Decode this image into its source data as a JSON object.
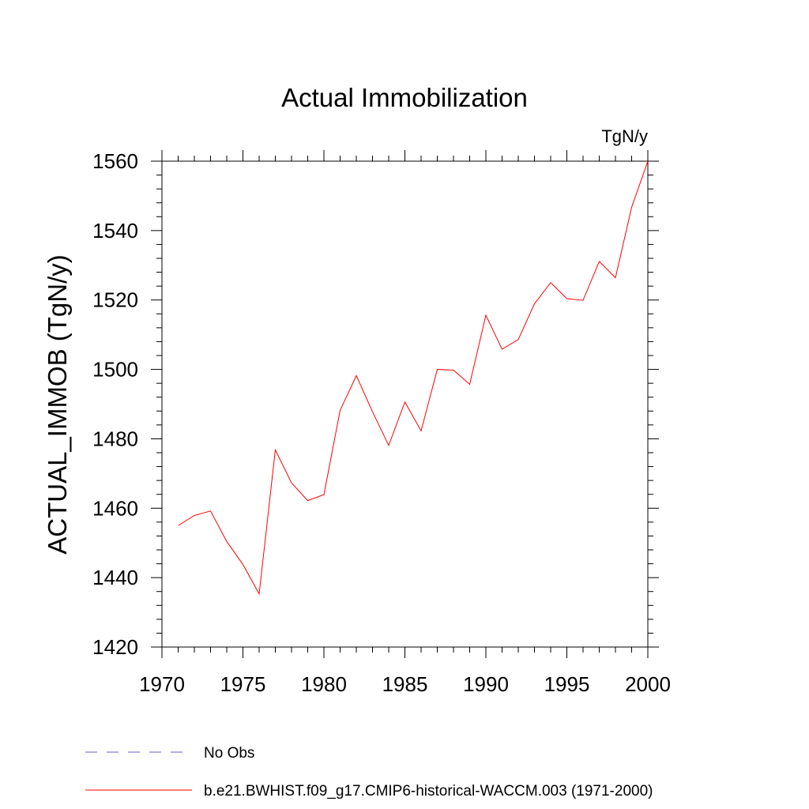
{
  "chart_data": {
    "type": "line",
    "title": "Actual Immobilization",
    "units_label": "TgN/y",
    "xlabel": "",
    "ylabel": "ACTUAL_IMMOB  (TgN/y)",
    "xlim": [
      1970,
      2000
    ],
    "ylim": [
      1420,
      1560
    ],
    "x_ticks": [
      1970,
      1975,
      1980,
      1985,
      1990,
      1995,
      2000
    ],
    "y_ticks": [
      1420,
      1440,
      1460,
      1480,
      1500,
      1520,
      1540,
      1560
    ],
    "x_tick_labels": [
      "1970",
      "1975",
      "1980",
      "1985",
      "1990",
      "1995",
      "2000"
    ],
    "y_tick_labels": [
      "1420",
      "1440",
      "1460",
      "1480",
      "1500",
      "1520",
      "1540",
      "1560"
    ],
    "x_minor_step": 1,
    "y_minor_step": 4,
    "grid": false,
    "legend_position": "bottom",
    "series": [
      {
        "name": "No Obs",
        "color": "#6a5acd",
        "dash": "dashed",
        "x": [],
        "values": []
      },
      {
        "name": "b.e21.BWHIST.f09_g17.CMIP6-historical-WACCM.003 (1971-2000)",
        "color": "#ff0000",
        "dash": "solid",
        "x": [
          1971,
          1972,
          1973,
          1974,
          1975,
          1976,
          1977,
          1978,
          1979,
          1980,
          1981,
          1982,
          1983,
          1984,
          1985,
          1986,
          1987,
          1988,
          1989,
          1990,
          1991,
          1992,
          1993,
          1994,
          1995,
          1996,
          1997,
          1998,
          1999,
          2000
        ],
        "values": [
          1455.0,
          1457.9,
          1459.2,
          1450.4,
          1443.8,
          1435.3,
          1476.8,
          1467.3,
          1462.2,
          1463.9,
          1488.2,
          1498.2,
          1487.8,
          1478.1,
          1490.6,
          1482.3,
          1500.0,
          1499.8,
          1495.7,
          1515.6,
          1505.8,
          1508.6,
          1518.9,
          1525.0,
          1520.4,
          1519.9,
          1531.1,
          1526.4,
          1546.7,
          1560.0
        ]
      }
    ]
  }
}
